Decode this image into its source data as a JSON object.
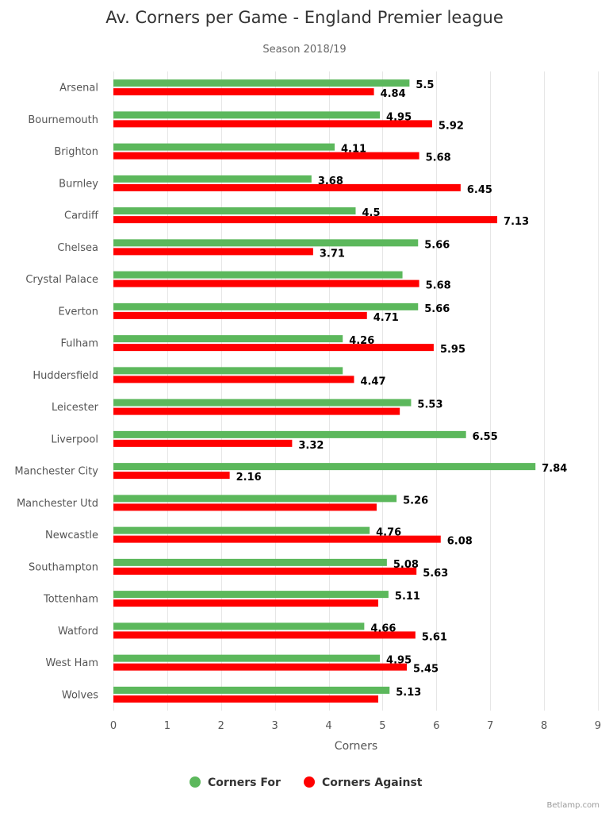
{
  "chart_data": {
    "type": "bar",
    "orientation": "horizontal",
    "title": "Av. Corners per Game - England Premier league",
    "subtitle": "Season 2018/19",
    "xlabel": "Corners",
    "xlim": [
      0,
      9
    ],
    "xticks": [
      0,
      1,
      2,
      3,
      4,
      5,
      6,
      7,
      8,
      9
    ],
    "grid": true,
    "legend_position": "bottom",
    "categories": [
      "Arsenal",
      "Bournemouth",
      "Brighton",
      "Burnley",
      "Cardiff",
      "Chelsea",
      "Crystal Palace",
      "Everton",
      "Fulham",
      "Huddersfield",
      "Leicester",
      "Liverpool",
      "Manchester City",
      "Manchester Utd",
      "Newcastle",
      "Southampton",
      "Tottenham",
      "Watford",
      "West Ham",
      "Wolves"
    ],
    "series": [
      {
        "name": "Corners For",
        "color": "#5cb85c",
        "values": [
          5.5,
          4.95,
          4.11,
          3.68,
          4.5,
          5.66,
          5.37,
          5.66,
          4.26,
          4.26,
          5.53,
          6.55,
          7.84,
          5.26,
          4.76,
          5.08,
          5.11,
          4.66,
          4.95,
          5.13
        ],
        "labels": [
          "5.5",
          "4.95",
          "4.11",
          "3.68",
          "4.5",
          "5.66",
          "",
          "5.66",
          "4.26",
          "",
          "5.53",
          "6.55",
          "7.84",
          "5.26",
          "4.76",
          "5.08",
          "5.11",
          "4.66",
          "4.95",
          "5.13"
        ]
      },
      {
        "name": "Corners Against",
        "color": "#ff0000",
        "values": [
          4.84,
          5.92,
          5.68,
          6.45,
          7.13,
          3.71,
          5.68,
          4.71,
          5.95,
          4.47,
          5.32,
          3.32,
          2.16,
          4.89,
          6.08,
          5.63,
          4.92,
          5.61,
          5.45,
          4.92
        ],
        "labels": [
          "4.84",
          "5.92",
          "5.68",
          "6.45",
          "7.13",
          "3.71",
          "5.68",
          "4.71",
          "5.95",
          "4.47",
          "",
          "3.32",
          "2.16",
          "",
          "6.08",
          "5.63",
          "",
          "5.61",
          "5.45",
          ""
        ]
      }
    ]
  },
  "credit": "Betlamp.com"
}
